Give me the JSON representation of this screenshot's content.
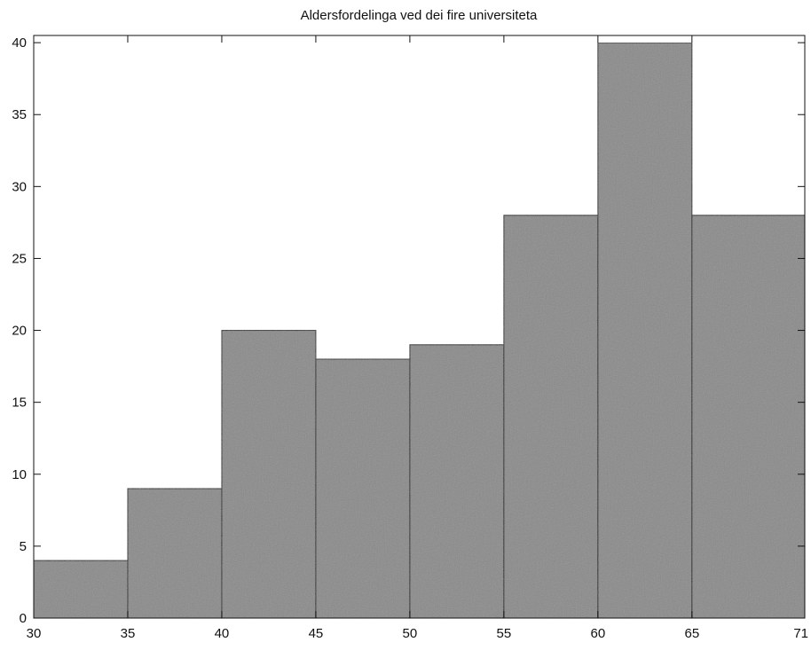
{
  "chart_data": {
    "type": "bar",
    "title": "Aldersfordelinga ved dei fire universiteta",
    "xlabel": "",
    "ylabel": "",
    "bins": [
      {
        "x0": 30,
        "x1": 35,
        "value": 4
      },
      {
        "x0": 35,
        "x1": 40,
        "value": 9
      },
      {
        "x0": 40,
        "x1": 45,
        "value": 20
      },
      {
        "x0": 45,
        "x1": 50,
        "value": 18
      },
      {
        "x0": 50,
        "x1": 55,
        "value": 19
      },
      {
        "x0": 55,
        "x1": 60,
        "value": 28
      },
      {
        "x0": 60,
        "x1": 65,
        "value": 40
      },
      {
        "x0": 65,
        "x1": 71,
        "value": 28
      }
    ],
    "xlim": [
      30,
      71
    ],
    "ylim": [
      0,
      40.5
    ],
    "xticks": [
      30,
      35,
      40,
      45,
      50,
      55,
      60,
      65,
      71
    ],
    "yticks": [
      0,
      5,
      10,
      15,
      20,
      25,
      30,
      35,
      40
    ],
    "grid": false,
    "colors": {
      "bar_fill": "#8a8a8a",
      "bar_edge": "#222222",
      "axes": "#111111"
    }
  }
}
